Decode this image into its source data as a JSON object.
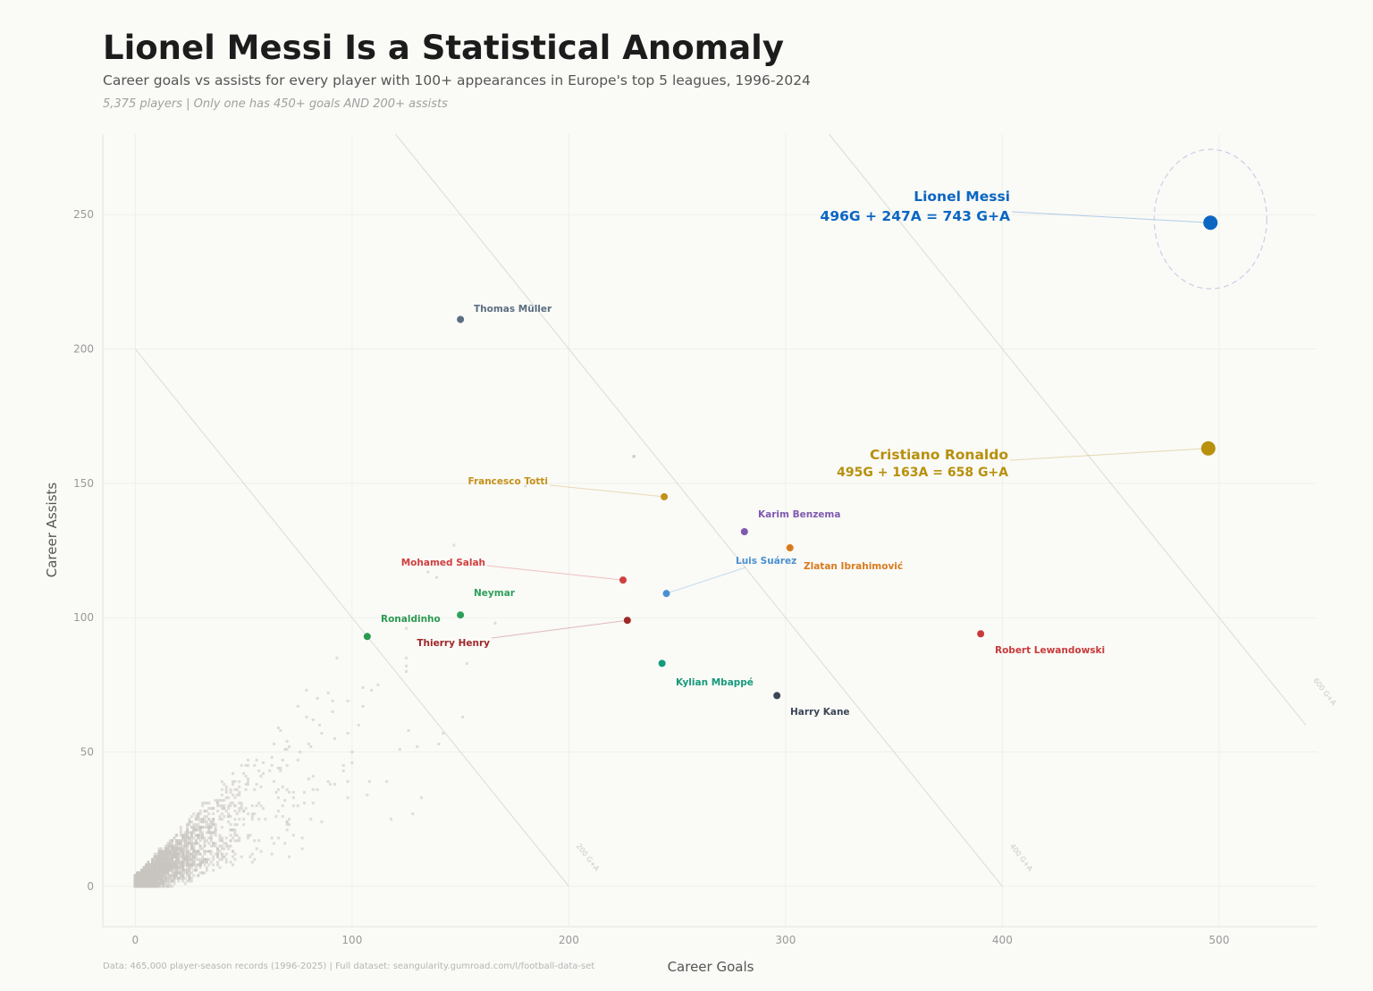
{
  "title": "Lionel Messi Is a Statistical Anomaly",
  "subtitle": "Career goals vs assists for every player with 100+ appearances in Europe's top 5 leagues, 1996-2024",
  "note": "5,375 players  |  Only one has 450+ goals AND 200+ assists",
  "source": "Data: 465,000 player-season records (1996-2025)  |  Full dataset: seangularity.gumroad.com/l/football-data-set",
  "chart_data": {
    "type": "scatter",
    "title": "Lionel Messi Is a Statistical Anomaly",
    "xlabel": "Career Goals",
    "ylabel": "Career Assists",
    "xlim": [
      -15,
      545
    ],
    "ylim": [
      -15,
      280
    ],
    "xticks": [
      0,
      100,
      200,
      300,
      400,
      500
    ],
    "yticks": [
      0,
      50,
      100,
      150,
      200,
      250
    ],
    "grid": true,
    "reference_lines": [
      {
        "label": "200 G+A",
        "total": 200
      },
      {
        "label": "400 G+A",
        "total": 400
      },
      {
        "label": "600 G+A",
        "total": 600
      }
    ],
    "background_points_color": "#c8c4bf",
    "highlighted": [
      {
        "name": "Lionel Messi",
        "goals": 496,
        "assists": 247,
        "detail": "496G + 247A = 743 G+A",
        "color": "#0b66c2"
      },
      {
        "name": "Cristiano Ronaldo",
        "goals": 495,
        "assists": 163,
        "detail": "495G + 163A = 658 G+A",
        "color": "#b8900c"
      },
      {
        "name": "Thomas Müller",
        "goals": 150,
        "assists": 211,
        "color": "#5b6e80"
      },
      {
        "name": "Francesco Totti",
        "goals": 244,
        "assists": 145,
        "color": "#c4901a"
      },
      {
        "name": "Karim Benzema",
        "goals": 281,
        "assists": 132,
        "color": "#7f5ab0"
      },
      {
        "name": "Zlatan Ibrahimović",
        "goals": 302,
        "assists": 126,
        "color": "#d97a1e"
      },
      {
        "name": "Mohamed Salah",
        "goals": 225,
        "assists": 114,
        "color": "#d04040"
      },
      {
        "name": "Luis Suárez",
        "goals": 245,
        "assists": 109,
        "color": "#4a90d0"
      },
      {
        "name": "Neymar",
        "goals": 150,
        "assists": 101,
        "color": "#2ea05a"
      },
      {
        "name": "Thierry Henry",
        "goals": 227,
        "assists": 99,
        "color": "#a02828"
      },
      {
        "name": "Ronaldinho",
        "goals": 107,
        "assists": 93,
        "color": "#2a9a50"
      },
      {
        "name": "Kylian Mbappé",
        "goals": 243,
        "assists": 83,
        "color": "#169a7a"
      },
      {
        "name": "Harry Kane",
        "goals": 296,
        "assists": 71,
        "color": "#3b4658"
      },
      {
        "name": "Robert Lewandowski",
        "goals": 390,
        "assists": 94,
        "color": "#c83a3a"
      }
    ]
  }
}
